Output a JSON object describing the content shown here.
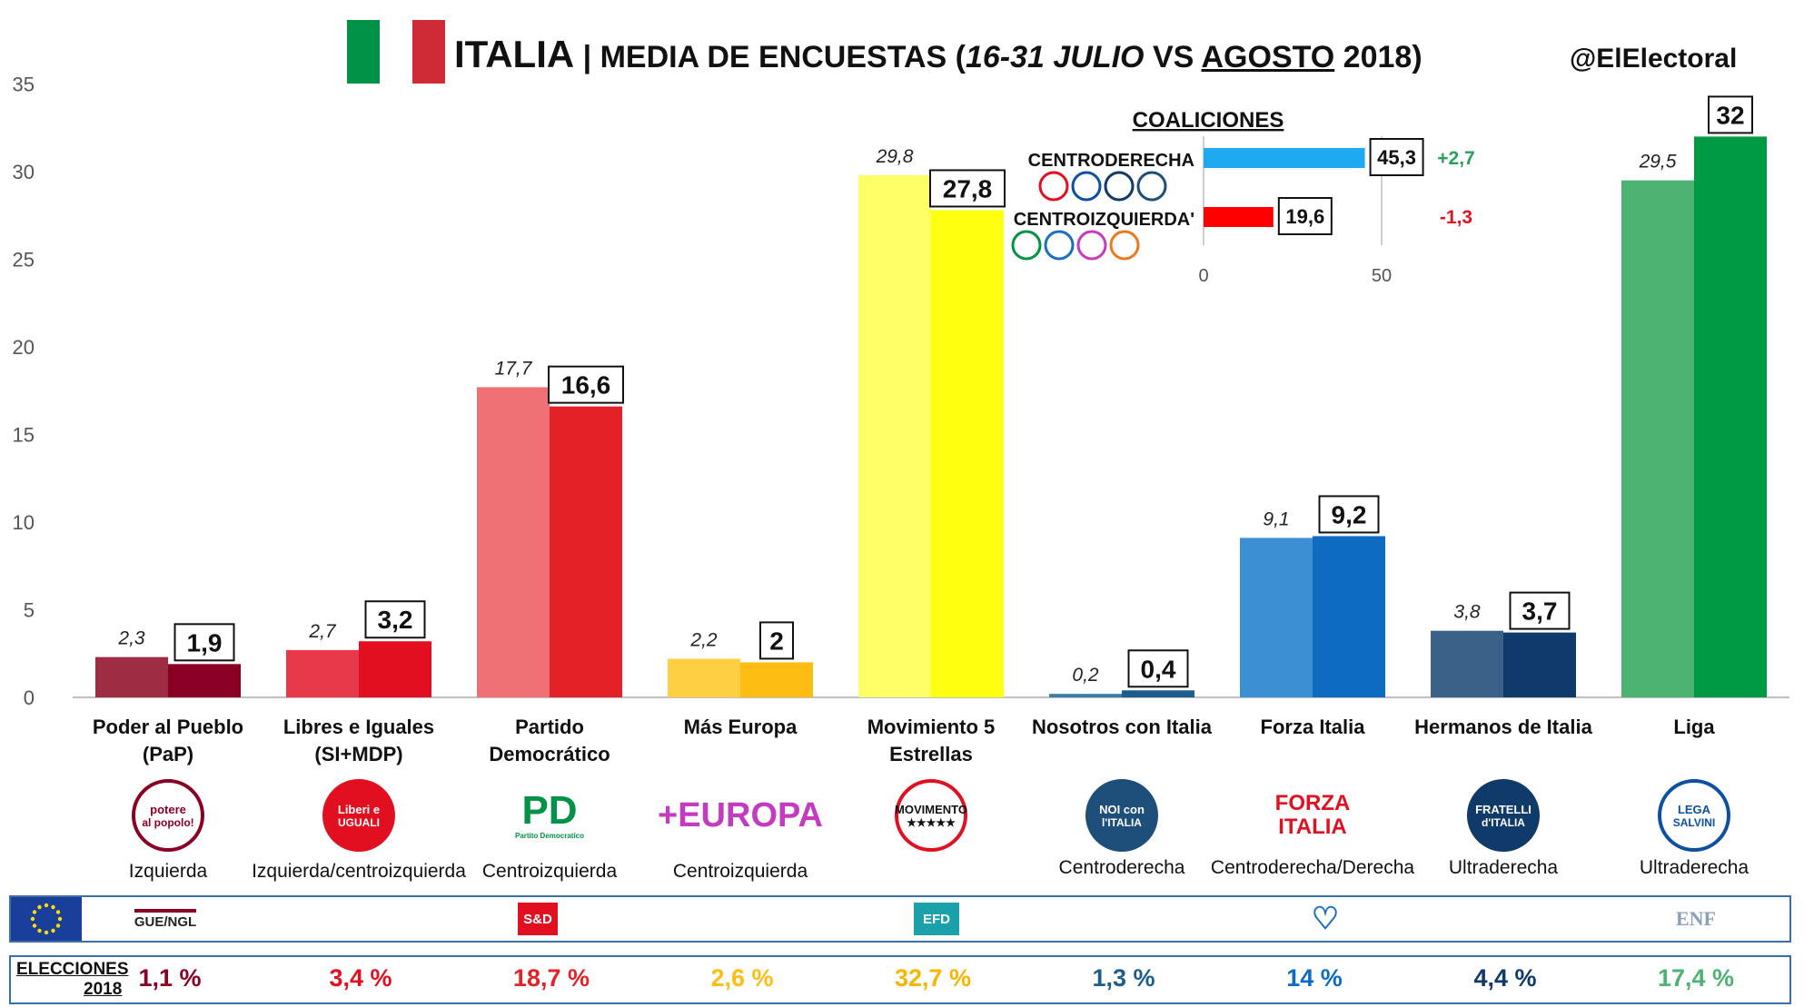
{
  "header": {
    "title_bold": "ITALIA",
    "title_sep": " | MEDIA DE ENCUESTAS (",
    "title_period": "16-31 JULIO",
    "title_vs": " VS ",
    "title_month": "AGOSTO",
    "title_year": " 2018)",
    "handle": "@ElElectoral",
    "flag_colors": [
      "#009246",
      "#ffffff",
      "#ce2b37"
    ]
  },
  "chart_data": {
    "type": "bar",
    "ylim": [
      0,
      35
    ],
    "yticks": [
      "0",
      "5",
      "10",
      "15",
      "20",
      "25",
      "30",
      "35"
    ],
    "grid": false,
    "series": [
      {
        "name": "",
        "period": "16-31 julio",
        "labels": [
          "2,3",
          "2,7",
          "17,7",
          "2,2",
          "29,8",
          "0,2",
          "9,1",
          "3,8",
          "29,5"
        ],
        "values": [
          2.3,
          2.7,
          17.7,
          2.2,
          29.8,
          0.2,
          9.1,
          3.8,
          29.5
        ]
      },
      {
        "name": "",
        "period": "agosto",
        "labels": [
          "1,9",
          "3,2",
          "16,6",
          "2",
          "27,8",
          "0,4",
          "9,2",
          "3,7",
          "32"
        ],
        "values": [
          1.9,
          3.2,
          16.6,
          2.0,
          27.8,
          0.4,
          9.2,
          3.7,
          32.0
        ]
      }
    ],
    "categories": [
      {
        "line1": "Poder al Pueblo",
        "line2": "(PaP)"
      },
      {
        "line1": "Libres e Iguales",
        "line2": "(SI+MDP)"
      },
      {
        "line1": "Partido",
        "line2": "Democrático"
      },
      {
        "line1": "Más Europa",
        "line2": ""
      },
      {
        "line1": "Movimiento 5",
        "line2": "Estrellas"
      },
      {
        "line1": "Nosotros con Italia",
        "line2": ""
      },
      {
        "line1": "Forza Italia",
        "line2": ""
      },
      {
        "line1": "Hermanos de Italia",
        "line2": ""
      },
      {
        "line1": "Liga",
        "line2": ""
      }
    ],
    "colors_july": [
      "#9e2d44",
      "#e8394b",
      "#f07175",
      "#fece43",
      "#ffff66",
      "#3a7fa8",
      "#3d8fd4",
      "#3a6187",
      "#4db373"
    ],
    "colors_august": [
      "#8a0024",
      "#e10f20",
      "#e42127",
      "#fdbd12",
      "#ffff10",
      "#1d5d8d",
      "#0d6cc0",
      "#0f3a6a",
      "#009a44"
    ],
    "coalitions": {
      "title": "COALICIONES",
      "items": [
        {
          "name": "CENTRODERECHA",
          "value": 45.3,
          "label": "45,3",
          "change": "+2,7",
          "change_color": "#2aa05a",
          "color": "#1eaaf1"
        },
        {
          "name": "CENTROIZQUIERDA'",
          "value": 19.6,
          "label": "19,6",
          "change": "-1,3",
          "change_color": "#e0141e",
          "color": "#ff0000"
        }
      ],
      "xticks": [
        "0",
        "50"
      ],
      "xlim": [
        0,
        50
      ]
    }
  },
  "party_logos": [
    {
      "line1": "potere",
      "line2": "al popolo!",
      "bg": "#ffffff",
      "ring": "#8a0024",
      "fg": "#8a0024"
    },
    {
      "line1": "Liberi e",
      "line2": "UGUALI",
      "bg": "#e10f20",
      "ring": "#e10f20",
      "fg": "#ffffff"
    },
    {
      "line1": "PD",
      "line2": "Partito Democratico",
      "bg": "#ffffff",
      "ring": "#ffffff",
      "fg": "#009246"
    },
    {
      "line1": "+EUROPA",
      "line2": "",
      "bg": "#ffffff",
      "ring": "#ffffff",
      "fg": "#c43bbf"
    },
    {
      "line1": "MOVIMENTO",
      "line2": "★★★★★",
      "bg": "#ffffff",
      "ring": "#e10f20",
      "fg": "#111111"
    },
    {
      "line1": "NOI con",
      "line2": "l'ITALIA",
      "bg": "#1d4f7a",
      "ring": "#1d4f7a",
      "fg": "#ffffff"
    },
    {
      "line1": "FORZA",
      "line2": "ITALIA",
      "bg": "#ffffff",
      "ring": "#ffffff",
      "fg": "#e10f20"
    },
    {
      "line1": "FRATELLI",
      "line2": "d'ITALIA",
      "bg": "#0f3a6a",
      "ring": "#0f3a6a",
      "fg": "#ffffff"
    },
    {
      "line1": "LEGA",
      "line2": "SALVINI",
      "bg": "#ffffff",
      "ring": "#0d4fa0",
      "fg": "#0d4fa0"
    }
  ],
  "ideologies": [
    "Izquierda",
    "Izquierda/centroizquierda",
    "Centroizquierda",
    "Centroizquierda",
    "",
    "Centroderecha",
    "Centroderecha/Derecha",
    "Ultraderecha",
    "Ultraderecha"
  ],
  "eu_groups": [
    {
      "label": "GUE/NGL",
      "color": "#8a0024"
    },
    {
      "label": "S&D",
      "color": "#e10f20"
    },
    {
      "label": "EFD",
      "color": "#1aa0a8"
    },
    {
      "label": "♡",
      "color": "#1d6cc0"
    },
    {
      "label": "ENF",
      "color": "#8aa0b8"
    }
  ],
  "elections": {
    "label_line1": "ELECCIONES",
    "label_line2": "2018",
    "values": [
      "1,1 %",
      "3,4 %",
      "18,7 %",
      "2,6 %",
      "32,7 %",
      "1,3 %",
      "14 %",
      "4,4 %",
      "17,4 %"
    ],
    "colors": [
      "#8a0024",
      "#e10f20",
      "#e42127",
      "#fdbd12",
      "#f7b500",
      "#1d5d8d",
      "#0d6cc0",
      "#0f3a6a",
      "#4db373"
    ]
  }
}
